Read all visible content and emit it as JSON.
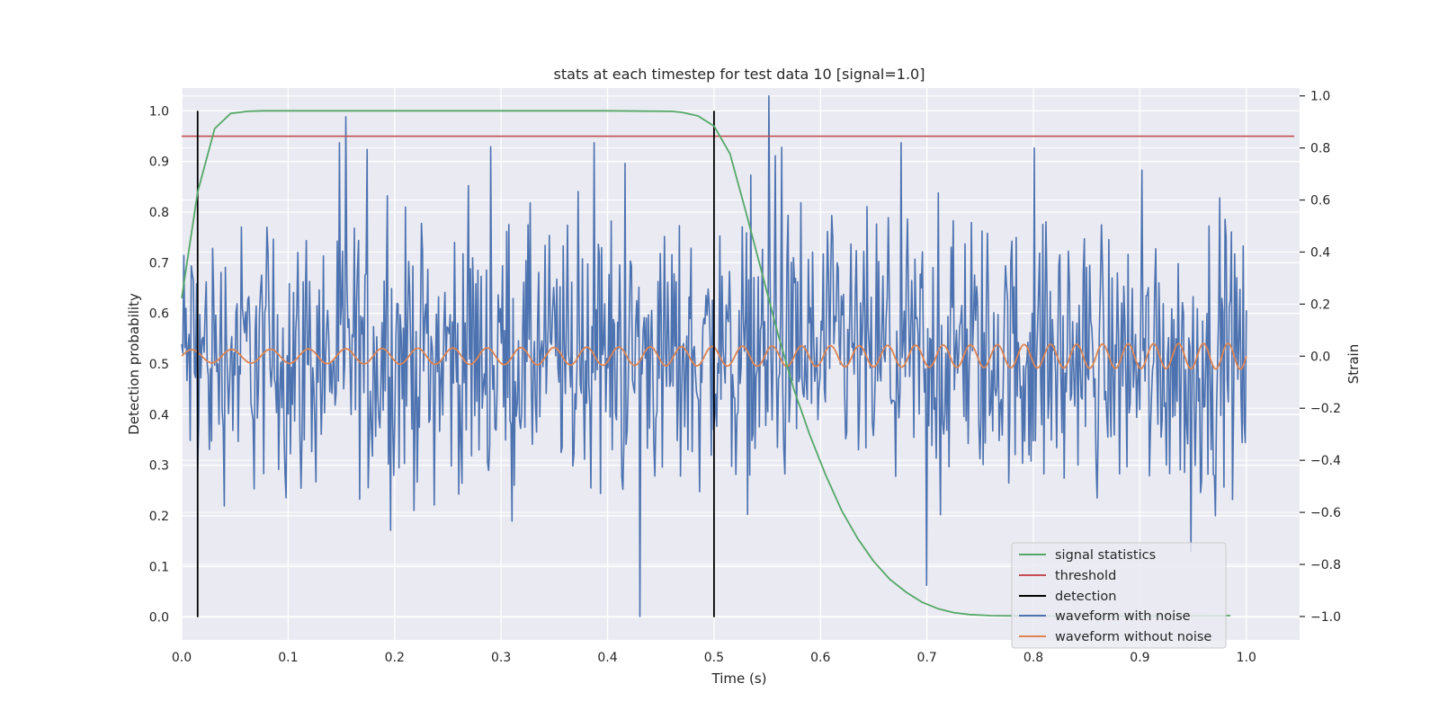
{
  "chart_data": {
    "type": "line",
    "title": "stats at each timestep for test data 10 [signal=1.0]",
    "xlabel": "Time (s)",
    "ylabel": "Detection probability",
    "ylabel_right": "Strain",
    "xlim": [
      0.0,
      1.05
    ],
    "ylim": [
      -0.045,
      1.045
    ],
    "ylim_right": [
      -1.09,
      1.03
    ],
    "x_ticks": [
      0.0,
      0.1,
      0.2,
      0.3,
      0.4,
      0.5,
      0.6,
      0.7,
      0.8,
      0.9,
      1.0
    ],
    "x_tick_labels": [
      "0.0",
      "0.1",
      "0.2",
      "0.3",
      "0.4",
      "0.5",
      "0.6",
      "0.7",
      "0.8",
      "0.9",
      "1.0"
    ],
    "y_ticks": [
      0.0,
      0.1,
      0.2,
      0.3,
      0.4,
      0.5,
      0.6,
      0.7,
      0.8,
      0.9,
      1.0
    ],
    "y_tick_labels": [
      "0.0",
      "0.1",
      "0.2",
      "0.3",
      "0.4",
      "0.5",
      "0.6",
      "0.7",
      "0.8",
      "0.9",
      "1.0"
    ],
    "y_right_ticks": [
      -1.0,
      -0.8,
      -0.6,
      -0.4,
      -0.2,
      0.0,
      0.2,
      0.4,
      0.6,
      0.8,
      1.0
    ],
    "y_right_tick_labels": [
      "−1.0",
      "−0.8",
      "−0.6",
      "−0.4",
      "−0.2",
      "0.0",
      "0.2",
      "0.4",
      "0.6",
      "0.8",
      "1.0"
    ],
    "grid": true,
    "legend_position": "lower-right",
    "series": [
      {
        "name": "signal statistics",
        "color": "#55a868",
        "axis": "left",
        "x": [
          0.0,
          0.015,
          0.031,
          0.046,
          0.062,
          0.077,
          0.1,
          0.2,
          0.3,
          0.4,
          0.46,
          0.47,
          0.485,
          0.5,
          0.515,
          0.53,
          0.545,
          0.56,
          0.575,
          0.59,
          0.605,
          0.62,
          0.635,
          0.65,
          0.665,
          0.68,
          0.695,
          0.71,
          0.725,
          0.74,
          0.76,
          0.8,
          0.9,
          0.985
        ],
        "values": [
          0.63,
          0.84,
          0.965,
          0.995,
          0.999,
          1.0,
          1.0,
          1.0,
          1.0,
          1.0,
          0.999,
          0.997,
          0.99,
          0.97,
          0.915,
          0.8,
          0.68,
          0.56,
          0.45,
          0.36,
          0.28,
          0.21,
          0.155,
          0.11,
          0.075,
          0.05,
          0.03,
          0.017,
          0.009,
          0.005,
          0.003,
          0.002,
          0.002,
          0.003
        ]
      },
      {
        "name": "threshold",
        "color": "#c44e52",
        "axis": "left",
        "x": [
          0.0,
          1.045
        ],
        "values": [
          0.95,
          0.95
        ]
      },
      {
        "name": "detection",
        "color": "#000000",
        "axis": "left",
        "vlines": [
          0.015,
          0.5
        ],
        "ymin": 0.0,
        "ymax": 1.0
      },
      {
        "name": "waveform with noise",
        "color": "#4c72b0",
        "axis": "right",
        "x_start": 0.0,
        "x_end": 1.0,
        "n_points": 1000,
        "amplitude_range": [
          -1.0,
          1.0
        ],
        "spikes": [
          [
            0.154,
            0.92
          ],
          [
            0.387,
            0.82
          ],
          [
            0.43,
            -1.0
          ],
          [
            0.552,
            1.0
          ],
          [
            0.558,
            0.77
          ],
          [
            0.7,
            -0.88
          ],
          [
            0.801,
            0.8
          ],
          [
            0.948,
            -0.75
          ]
        ]
      },
      {
        "name": "waveform without noise",
        "color": "#dd8452",
        "axis": "right",
        "x_start": 0.0,
        "x_end": 1.0,
        "amplitude_start": 0.025,
        "amplitude_end": 0.05,
        "cycles": 35
      }
    ],
    "legend": [
      {
        "label": "signal statistics",
        "color": "#55a868"
      },
      {
        "label": "threshold",
        "color": "#c44e52"
      },
      {
        "label": "detection",
        "color": "#000000"
      },
      {
        "label": "waveform with noise",
        "color": "#4c72b0"
      },
      {
        "label": "waveform without noise",
        "color": "#dd8452"
      }
    ]
  }
}
